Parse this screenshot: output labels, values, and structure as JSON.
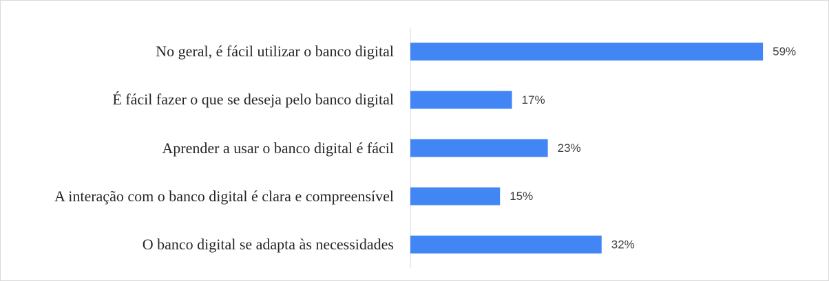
{
  "chart_data": {
    "type": "bar",
    "orientation": "horizontal",
    "categories": [
      "No geral, é fácil utilizar o banco digital",
      "É fácil fazer o que se deseja pelo banco digital",
      "Aprender a usar o banco digital é fácil",
      "A interação com o banco digital é clara e compreensível",
      "O banco digital se adapta às necessidades"
    ],
    "values": [
      59,
      17,
      23,
      15,
      32
    ],
    "value_labels": [
      "59%",
      "17%",
      "23%",
      "15%",
      "32%"
    ],
    "color": "#4285f4"
  }
}
